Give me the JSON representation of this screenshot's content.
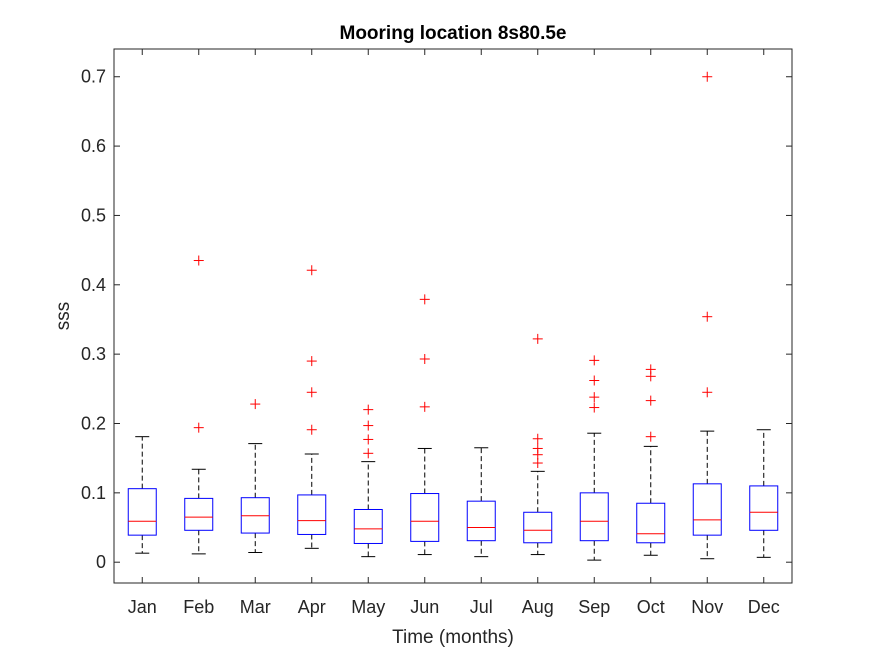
{
  "chart_data": {
    "type": "boxplot",
    "title": "Mooring location 8s80.5e",
    "xlabel": "Time (months)",
    "ylabel": "sss",
    "ylim": [
      -0.03,
      0.74
    ],
    "yticks": [
      0,
      0.1,
      0.2,
      0.3,
      0.4,
      0.5,
      0.6,
      0.7
    ],
    "ytick_labels": [
      "0",
      "0.1",
      "0.2",
      "0.3",
      "0.4",
      "0.5",
      "0.6",
      "0.7"
    ],
    "grid": false,
    "colors": {
      "box": "#0000ff",
      "median": "#ff0000",
      "whisker": "#000000",
      "outlier": "#ff0000",
      "axes": "#262626"
    },
    "categories": [
      "Jan",
      "Feb",
      "Mar",
      "Apr",
      "May",
      "Jun",
      "Jul",
      "Aug",
      "Sep",
      "Oct",
      "Nov",
      "Dec"
    ],
    "boxes": [
      {
        "q1": 0.039,
        "median": 0.059,
        "q3": 0.106,
        "whisker_low": 0.013,
        "whisker_high": 0.181,
        "outliers": []
      },
      {
        "q1": 0.046,
        "median": 0.065,
        "q3": 0.092,
        "whisker_low": 0.012,
        "whisker_high": 0.134,
        "outliers": [
          0.194,
          0.435
        ]
      },
      {
        "q1": 0.042,
        "median": 0.067,
        "q3": 0.093,
        "whisker_low": 0.014,
        "whisker_high": 0.171,
        "outliers": [
          0.228
        ]
      },
      {
        "q1": 0.04,
        "median": 0.06,
        "q3": 0.097,
        "whisker_low": 0.02,
        "whisker_high": 0.156,
        "outliers": [
          0.191,
          0.245,
          0.29,
          0.421
        ]
      },
      {
        "q1": 0.027,
        "median": 0.048,
        "q3": 0.076,
        "whisker_low": 0.008,
        "whisker_high": 0.145,
        "outliers": [
          0.157,
          0.177,
          0.197,
          0.22
        ]
      },
      {
        "q1": 0.03,
        "median": 0.059,
        "q3": 0.099,
        "whisker_low": 0.011,
        "whisker_high": 0.164,
        "outliers": [
          0.224,
          0.293,
          0.379
        ]
      },
      {
        "q1": 0.031,
        "median": 0.05,
        "q3": 0.088,
        "whisker_low": 0.008,
        "whisker_high": 0.165,
        "outliers": []
      },
      {
        "q1": 0.028,
        "median": 0.046,
        "q3": 0.072,
        "whisker_low": 0.011,
        "whisker_high": 0.131,
        "outliers": [
          0.143,
          0.155,
          0.164,
          0.178,
          0.322
        ]
      },
      {
        "q1": 0.031,
        "median": 0.059,
        "q3": 0.1,
        "whisker_low": 0.003,
        "whisker_high": 0.186,
        "outliers": [
          0.223,
          0.238,
          0.262,
          0.291
        ]
      },
      {
        "q1": 0.028,
        "median": 0.041,
        "q3": 0.085,
        "whisker_low": 0.01,
        "whisker_high": 0.167,
        "outliers": [
          0.181,
          0.233,
          0.268,
          0.278
        ]
      },
      {
        "q1": 0.039,
        "median": 0.061,
        "q3": 0.113,
        "whisker_low": 0.005,
        "whisker_high": 0.189,
        "outliers": [
          0.245,
          0.354,
          0.7
        ]
      },
      {
        "q1": 0.046,
        "median": 0.072,
        "q3": 0.11,
        "whisker_low": 0.007,
        "whisker_high": 0.191,
        "outliers": []
      }
    ]
  }
}
